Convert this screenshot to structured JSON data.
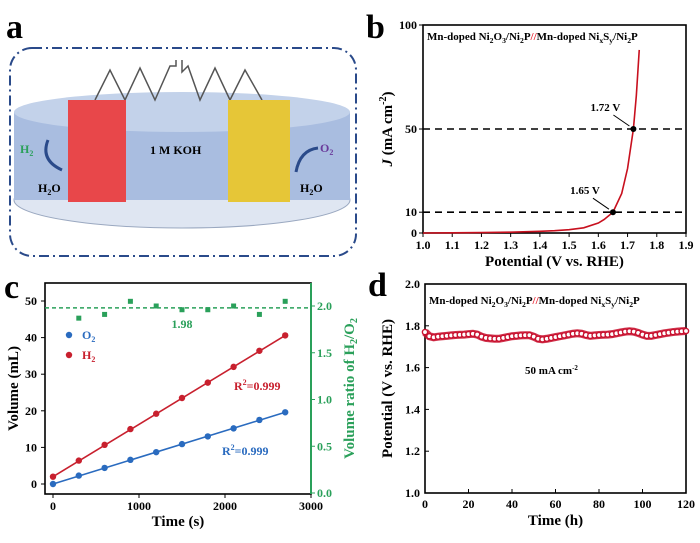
{
  "panel_labels": {
    "a": "a",
    "b": "b",
    "c": "c",
    "d": "d"
  },
  "schematic": {
    "electrolyte": "1 M KOH",
    "left_gas": "H",
    "left_gas_sub": "2",
    "left_reactant": "H",
    "left_reactant_sub": "2",
    "left_reactant_tail": "O",
    "right_gas": "O",
    "right_gas_sub": "2",
    "right_reactant": "H",
    "right_reactant_sub": "2",
    "right_reactant_tail": "O",
    "colors": {
      "cathode": "#e8474a",
      "anode": "#e6c637",
      "electrolyte": "#9fb6dd",
      "border": "#2a4a8a",
      "h2": "#2aa05a",
      "o2": "#6a3a9a"
    }
  },
  "chart_data": [
    {
      "panel": "b",
      "type": "line",
      "title_parts": [
        "Mn-doped Ni",
        "2",
        "O",
        "3",
        "/Ni",
        "2",
        "P",
        "//",
        "Mn-doped Ni",
        "x",
        "S",
        "y",
        "/Ni",
        "2",
        "P"
      ],
      "xlabel": "Potential (V vs. RHE)",
      "ylabel_italic": "J",
      "ylabel": " (mA cm",
      "ylabel_sup": "-2",
      "ylabel_tail": ")",
      "xlim": [
        1.0,
        1.9
      ],
      "ylim": [
        0,
        100
      ],
      "xticks": [
        "1.0",
        "1.1",
        "1.2",
        "1.3",
        "1.4",
        "1.5",
        "1.6",
        "1.7",
        "1.8",
        "1.9"
      ],
      "yticks": [
        "0",
        "10",
        "50",
        "100"
      ],
      "x": [
        1.0,
        1.1,
        1.2,
        1.3,
        1.4,
        1.45,
        1.5,
        1.55,
        1.6,
        1.62,
        1.65,
        1.68,
        1.7,
        1.72,
        1.73,
        1.74
      ],
      "y": [
        0,
        0.1,
        0.2,
        0.4,
        0.8,
        1.1,
        1.6,
        2.5,
        4.8,
        6.5,
        10,
        19,
        31,
        50,
        66,
        88
      ],
      "color": "#c8101e",
      "hlines": [
        10,
        50
      ],
      "annotations": [
        {
          "text": "1.65 V",
          "x": 1.65,
          "y": 10
        },
        {
          "text": "1.72 V",
          "x": 1.72,
          "y": 50
        }
      ]
    },
    {
      "panel": "c",
      "type": "scatter",
      "xlabel": "Time (s)",
      "ylabel": "Volume (mL)",
      "y2label": "Volume ratio of H",
      "y2label_sub": "2",
      "y2label_tail": "/O",
      "y2label_sub2": "2",
      "xlim": [
        0,
        3000
      ],
      "ylim": [
        -1.5,
        55
      ],
      "y2lim": [
        0,
        2.33
      ],
      "xticks": [
        "0",
        "1000",
        "2000",
        "3000"
      ],
      "yticks": [
        "0",
        "10",
        "20",
        "30",
        "40",
        "50"
      ],
      "y2ticks": [
        "0.0",
        "0.5",
        "1.0",
        "1.5",
        "2.0"
      ],
      "x": [
        0,
        300,
        600,
        900,
        1200,
        1500,
        1800,
        2100,
        2400,
        2700
      ],
      "series": [
        {
          "name": "O",
          "name_sub": "2",
          "color": "#2a6bbf",
          "values": [
            0,
            2.3,
            4.4,
            6.6,
            8.7,
            10.9,
            13.0,
            15.2,
            17.5,
            19.6
          ],
          "r2": "R",
          "r2_sup": "2",
          "r2_tail": "=0.999"
        },
        {
          "name": "H",
          "name_sub": "2",
          "color": "#c8202e",
          "values": [
            2.0,
            6.4,
            10.7,
            15.0,
            19.2,
            23.5,
            27.7,
            32.0,
            36.4,
            40.6
          ],
          "r2": "R",
          "r2_sup": "2",
          "r2_tail": "=0.999"
        }
      ],
      "ratio": {
        "color": "#2aa05a",
        "x": [
          300,
          600,
          900,
          1200,
          1500,
          1800,
          2100,
          2400,
          2700
        ],
        "values": [
          1.87,
          1.91,
          2.05,
          2.0,
          1.96,
          1.96,
          2.0,
          1.91,
          2.05
        ],
        "mean": 1.98,
        "mean_label": "1.98"
      },
      "legend": "top-left"
    },
    {
      "panel": "d",
      "type": "line",
      "title_parts": [
        "Mn-doped Ni",
        "2",
        "O",
        "3",
        "/Ni",
        "2",
        "P",
        "//",
        "Mn-doped Ni",
        "x",
        "S",
        "y",
        "/Ni",
        "2",
        "P"
      ],
      "xlabel": "Time (h)",
      "ylabel": "Potential (V vs. RHE)",
      "annotation": "50 mA cm",
      "annotation_sup": "-2",
      "xlim": [
        0,
        120
      ],
      "ylim": [
        1.0,
        2.0
      ],
      "xticks": [
        "0",
        "20",
        "40",
        "60",
        "80",
        "100",
        "120"
      ],
      "yticks": [
        "1.0",
        "1.2",
        "1.4",
        "1.6",
        "1.8",
        "2.0"
      ],
      "color": "#c8102e",
      "x_step": 2,
      "values": [
        1.77,
        1.75,
        1.745,
        1.748,
        1.75,
        1.752,
        1.754,
        1.756,
        1.757,
        1.758,
        1.76,
        1.762,
        1.758,
        1.748,
        1.742,
        1.74,
        1.738,
        1.738,
        1.742,
        1.746,
        1.75,
        1.752,
        1.754,
        1.755,
        1.755,
        1.748,
        1.738,
        1.735,
        1.738,
        1.742,
        1.746,
        1.75,
        1.754,
        1.758,
        1.762,
        1.764,
        1.762,
        1.756,
        1.752,
        1.754,
        1.756,
        1.757,
        1.758,
        1.76,
        1.764,
        1.768,
        1.772,
        1.774,
        1.772,
        1.766,
        1.758,
        1.752,
        1.752,
        1.756,
        1.76,
        1.764,
        1.767,
        1.77,
        1.772,
        1.774,
        1.775
      ]
    }
  ]
}
